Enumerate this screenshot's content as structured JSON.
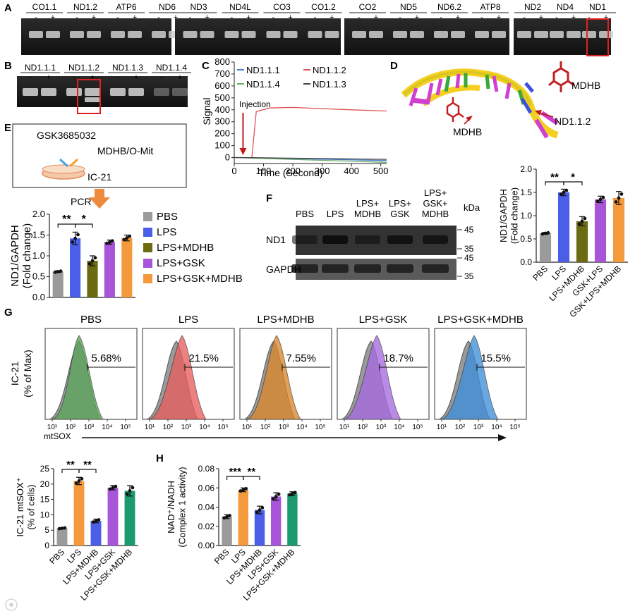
{
  "panel_letters": [
    "A",
    "B",
    "C",
    "D",
    "E",
    "F",
    "G",
    "H"
  ],
  "panelA": {
    "groups": [
      {
        "lanes": [
          "CO1.1",
          "ND1.2",
          "ATP6",
          "ND6"
        ]
      },
      {
        "lanes": [
          "ND3",
          "ND4L",
          "CO3",
          "CO1.2"
        ]
      },
      {
        "lanes": [
          "CO2",
          "ND5",
          "ND6.2",
          "ATP8"
        ]
      },
      {
        "lanes": [
          "ND2",
          "ND4",
          "ND1"
        ]
      }
    ],
    "minus": "-",
    "plus": "+"
  },
  "panelB": {
    "lanes": [
      "ND1.1.1",
      "ND1.1.2",
      "ND1.1.3",
      "ND1.1.4"
    ]
  },
  "panelC": {
    "chart_data": {
      "type": "line",
      "xlabel": "Time (Second)",
      "ylabel": "Signal",
      "xlim": [
        0,
        520
      ],
      "ylim": [
        -50,
        800
      ],
      "xticks": [
        0,
        100,
        200,
        300,
        400,
        500
      ],
      "yticks": [
        0,
        100,
        200,
        300,
        400,
        500,
        600,
        700,
        800
      ],
      "annotation": "Injection",
      "injection_x": 30,
      "series": [
        {
          "name": "ND1.1.1",
          "color": "#4a7bd0",
          "x": [
            0,
            60,
            520
          ],
          "y": [
            0,
            -2,
            -25
          ]
        },
        {
          "name": "ND1.1.2",
          "color": "#e05050",
          "x": [
            0,
            60,
            75,
            120,
            200,
            300,
            400,
            520
          ],
          "y": [
            0,
            -3,
            385,
            415,
            420,
            410,
            400,
            390
          ]
        },
        {
          "name": "ND1.1.4",
          "color": "#6aab6a",
          "x": [
            0,
            60,
            520
          ],
          "y": [
            0,
            -5,
            -40
          ]
        },
        {
          "name": "ND1.1.3",
          "color": "#444444",
          "x": [
            0,
            60,
            520
          ],
          "y": [
            0,
            -1,
            -15
          ]
        }
      ]
    }
  },
  "panelD": {
    "labels": [
      "MDHB",
      "MDHB",
      "ND1.1.2"
    ]
  },
  "panelE": {
    "schematic": {
      "lines": [
        "GSK3685032",
        "MDHB/O-Mit",
        "IC-21"
      ],
      "arrow_label": "PCR"
    },
    "legend": [
      "PBS",
      "LPS",
      "LPS+MDHB",
      "LPS+GSK",
      "LPS+GSK+MDHB"
    ],
    "chart_data": {
      "type": "bar",
      "ylabel_lines": [
        "ND1/GAPDH",
        "(Fold change)"
      ],
      "ylim": [
        0,
        2.0
      ],
      "yticks": [
        "0.0",
        "0.5",
        "1.0",
        "1.5",
        "2.0"
      ],
      "categories": [
        "PBS",
        "LPS",
        "LPS+MDHB",
        "LPS+GSK",
        "LPS+GSK+MDHB"
      ],
      "values": [
        0.62,
        1.42,
        0.88,
        1.33,
        1.43
      ],
      "errors": [
        0.02,
        0.15,
        0.12,
        0.05,
        0.07
      ],
      "colors": [
        "#9b9b9b",
        "#4a5ee8",
        "#6b6b12",
        "#a855d9",
        "#f59a3c"
      ],
      "significance": [
        {
          "from": 0,
          "to": 1,
          "text": "**"
        },
        {
          "from": 1,
          "to": 2,
          "text": "*"
        }
      ]
    }
  },
  "panelF": {
    "lanes": [
      [
        "PBS"
      ],
      [
        "LPS"
      ],
      [
        "LPS+",
        "MDHB"
      ],
      [
        "LPS+",
        "GSK"
      ],
      [
        "LPS+",
        "GSK+",
        "MDHB"
      ]
    ],
    "kda": "kDa",
    "rows": [
      "ND1",
      "GAPDH"
    ],
    "markers": [
      "45",
      "35",
      "45",
      "35"
    ]
  },
  "panelF2": {
    "chart_data": {
      "type": "bar",
      "ylabel_lines": [
        "ND1/GAPDH",
        "(Fold change)"
      ],
      "ylim": [
        0,
        2.0
      ],
      "yticks": [
        "0.0",
        "0.5",
        "1.0",
        "1.5",
        "2.0"
      ],
      "categories": [
        "PBS",
        "LPS",
        "LPS+MDHB",
        "GSK+LPS",
        "GSK+LPS+MDHB"
      ],
      "values": [
        0.62,
        1.5,
        0.88,
        1.35,
        1.38
      ],
      "errors": [
        0.02,
        0.07,
        0.1,
        0.07,
        0.14
      ],
      "colors": [
        "#9b9b9b",
        "#4a5ee8",
        "#6b6b12",
        "#a855d9",
        "#f59a3c"
      ],
      "significance": [
        {
          "from": 0,
          "to": 1,
          "text": "**"
        },
        {
          "from": 1,
          "to": 2,
          "text": "*"
        }
      ]
    }
  },
  "panelG": {
    "titles": [
      "PBS",
      "LPS",
      "LPS+MDHB",
      "LPS+GSK",
      "LPS+GSK+MDHB"
    ],
    "percents": [
      "5.68%",
      "21.5%",
      "7.55%",
      "18.7%",
      "15.5%"
    ],
    "colors": [
      "#5aa55a",
      "#e85e5e",
      "#d9872d",
      "#a66be0",
      "#3f8fd9"
    ],
    "peak_shift": [
      0,
      8,
      4,
      8,
      8
    ],
    "ylabel_lines": [
      "IC-21",
      "(% of Max)"
    ],
    "xlabel": "mtSOX",
    "ticks": [
      "10¹",
      "10²",
      "10³",
      "10⁴",
      "10⁵"
    ]
  },
  "panelG2": {
    "chart_data": {
      "type": "bar",
      "ylabel_lines": [
        "IC-21 mtSOX⁺",
        "(% of cells)"
      ],
      "ylim": [
        0,
        25
      ],
      "yticks": [
        "0",
        "5",
        "10",
        "15",
        "20",
        "25"
      ],
      "categories": [
        "PBS",
        "LPS",
        "LPS+MDHB",
        "LPS+GSK",
        "LPS+GSK+MDHB"
      ],
      "values": [
        5.6,
        21.0,
        8.0,
        18.8,
        17.8
      ],
      "errors": [
        0.2,
        1.2,
        0.6,
        0.7,
        1.7
      ],
      "colors": [
        "#9b9b9b",
        "#f59a3c",
        "#4a5ee8",
        "#a855d9",
        "#1a9a6e"
      ],
      "significance": [
        {
          "from": 0,
          "to": 1,
          "text": "**"
        },
        {
          "from": 1,
          "to": 2,
          "text": "**"
        }
      ]
    }
  },
  "panelH": {
    "chart_data": {
      "type": "bar",
      "ylabel_lines": [
        "NAD⁺/NADH",
        "(Complex 1 activity)"
      ],
      "ylim": [
        0,
        0.08
      ],
      "yticks": [
        "0.00",
        "0.02",
        "0.04",
        "0.06",
        "0.08"
      ],
      "categories": [
        "PBS",
        "LPS",
        "LPS+MDHB",
        "LPS+GSK",
        "LPS+GSK+MDHB"
      ],
      "values": [
        0.03,
        0.058,
        0.037,
        0.051,
        0.054
      ],
      "errors": [
        0.002,
        0.002,
        0.004,
        0.004,
        0.002
      ],
      "colors": [
        "#9b9b9b",
        "#f59a3c",
        "#4a5ee8",
        "#a855d9",
        "#1a9a6e"
      ],
      "significance": [
        {
          "from": 0,
          "to": 1,
          "text": "***"
        },
        {
          "from": 1,
          "to": 2,
          "text": "**"
        }
      ]
    }
  }
}
